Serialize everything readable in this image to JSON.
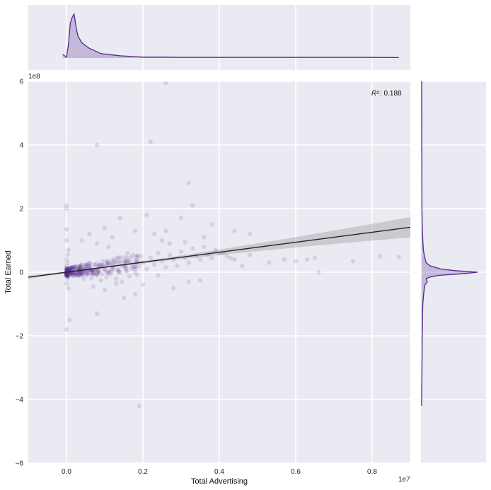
{
  "chart_data": {
    "type": "scatter",
    "subtype": "jointplot-with-regression",
    "xlabel": "Total Advertising",
    "ylabel": "Total Earned",
    "x_offset_label": "1e7",
    "y_offset_label": "1e8",
    "xlim": [
      -1000000,
      9000000
    ],
    "ylim": [
      -600000000,
      600000000
    ],
    "x_ticks": [
      0,
      2000000,
      4000000,
      6000000,
      8000000
    ],
    "x_tick_labels": [
      "0.0",
      "0.2",
      "0.4",
      "0.6",
      "0.8"
    ],
    "y_ticks": [
      -600000000,
      -400000000,
      -200000000,
      0,
      200000000,
      400000000,
      600000000
    ],
    "y_tick_labels": [
      "−6",
      "−4",
      "−2",
      "0",
      "2",
      "4",
      "6"
    ],
    "annotation": {
      "label": "R²",
      "value": ": 0.188",
      "position": "top-right"
    },
    "regression": {
      "slope": 15.7,
      "intercept": 0,
      "ci_halfwidth_at_xmax": 30000000
    },
    "grid": true,
    "background": "#eaeaf2",
    "series_color": "#54278f",
    "points": [
      [
        0,
        210000000
      ],
      [
        0,
        200000000
      ],
      [
        0,
        135000000
      ],
      [
        0,
        100000000
      ],
      [
        50000,
        70000000
      ],
      [
        30000,
        55000000
      ],
      [
        0,
        40000000
      ],
      [
        20000,
        30000000
      ],
      [
        0,
        20000000
      ],
      [
        50000,
        10000000
      ],
      [
        20000,
        0
      ],
      [
        0,
        -10000000
      ],
      [
        30000,
        -20000000
      ],
      [
        0,
        -35000000
      ],
      [
        50000,
        -50000000
      ],
      [
        0,
        -180000000
      ],
      [
        80000,
        -150000000
      ],
      [
        100000,
        -5000000
      ],
      [
        150000,
        15000000
      ],
      [
        200000,
        -8000000
      ],
      [
        250000,
        20000000
      ],
      [
        300000,
        -12000000
      ],
      [
        350000,
        8000000
      ],
      [
        400000,
        25000000
      ],
      [
        450000,
        -20000000
      ],
      [
        500000,
        12000000
      ],
      [
        550000,
        -5000000
      ],
      [
        600000,
        30000000
      ],
      [
        650000,
        -18000000
      ],
      [
        700000,
        5000000
      ],
      [
        750000,
        22000000
      ],
      [
        800000,
        -10000000
      ],
      [
        850000,
        15000000
      ],
      [
        900000,
        -25000000
      ],
      [
        950000,
        35000000
      ],
      [
        1000000,
        8000000
      ],
      [
        1050000,
        -15000000
      ],
      [
        1100000,
        28000000
      ],
      [
        1150000,
        -6000000
      ],
      [
        1200000,
        18000000
      ],
      [
        1250000,
        40000000
      ],
      [
        1300000,
        -20000000
      ],
      [
        1350000,
        10000000
      ],
      [
        1400000,
        30000000
      ],
      [
        1450000,
        -30000000
      ],
      [
        1500000,
        22000000
      ],
      [
        1550000,
        5000000
      ],
      [
        1600000,
        45000000
      ],
      [
        1650000,
        -12000000
      ],
      [
        1700000,
        25000000
      ],
      [
        1750000,
        15000000
      ],
      [
        1800000,
        38000000
      ],
      [
        1850000,
        -8000000
      ],
      [
        1900000,
        20000000
      ],
      [
        1950000,
        50000000
      ],
      [
        2000000,
        30000000
      ],
      [
        2100000,
        10000000
      ],
      [
        2200000,
        45000000
      ],
      [
        2300000,
        25000000
      ],
      [
        2400000,
        60000000
      ],
      [
        2500000,
        35000000
      ],
      [
        2600000,
        15000000
      ],
      [
        2700000,
        55000000
      ],
      [
        2800000,
        40000000
      ],
      [
        2900000,
        20000000
      ],
      [
        3000000,
        65000000
      ],
      [
        3100000,
        45000000
      ],
      [
        3200000,
        30000000
      ],
      [
        3300000,
        75000000
      ],
      [
        3400000,
        50000000
      ],
      [
        3500000,
        40000000
      ],
      [
        3600000,
        80000000
      ],
      [
        3700000,
        55000000
      ],
      [
        3800000,
        45000000
      ],
      [
        3900000,
        70000000
      ],
      [
        4000000,
        60000000
      ],
      [
        4200000,
        50000000
      ],
      [
        4400000,
        40000000
      ],
      [
        4600000,
        20000000
      ],
      [
        4800000,
        55000000
      ],
      [
        5300000,
        30000000
      ],
      [
        5700000,
        40000000
      ],
      [
        6000000,
        35000000
      ],
      [
        6300000,
        40000000
      ],
      [
        6500000,
        45000000
      ],
      [
        6600000,
        0
      ],
      [
        7500000,
        35000000
      ],
      [
        8200000,
        50000000
      ],
      [
        8700000,
        48000000
      ],
      [
        800000,
        400000000
      ],
      [
        2200000,
        410000000
      ],
      [
        2600000,
        595000000
      ],
      [
        3200000,
        280000000
      ],
      [
        1900000,
        -420000000
      ],
      [
        3500000,
        -25000000
      ],
      [
        2800000,
        -50000000
      ],
      [
        3200000,
        -30000000
      ],
      [
        2500000,
        100000000
      ],
      [
        1800000,
        130000000
      ],
      [
        2100000,
        180000000
      ],
      [
        1400000,
        170000000
      ],
      [
        1000000,
        140000000
      ],
      [
        600000,
        120000000
      ],
      [
        400000,
        100000000
      ],
      [
        2600000,
        130000000
      ],
      [
        3000000,
        170000000
      ],
      [
        3300000,
        210000000
      ],
      [
        3800000,
        150000000
      ],
      [
        4400000,
        130000000
      ],
      [
        4800000,
        120000000
      ],
      [
        3600000,
        110000000
      ],
      [
        2300000,
        120000000
      ],
      [
        1200000,
        110000000
      ],
      [
        800000,
        90000000
      ],
      [
        1500000,
        -80000000
      ],
      [
        1800000,
        -70000000
      ],
      [
        1000000,
        -55000000
      ],
      [
        700000,
        -45000000
      ],
      [
        1300000,
        -35000000
      ],
      [
        800000,
        -130000000
      ],
      [
        2000000,
        -40000000
      ],
      [
        2400000,
        -10000000
      ],
      [
        1600000,
        60000000
      ],
      [
        1100000,
        80000000
      ],
      [
        2700000,
        90000000
      ],
      [
        3100000,
        95000000
      ],
      [
        4100000,
        60000000
      ],
      [
        4300000,
        45000000
      ]
    ],
    "marginal_x_density": [
      [
        -100000,
        0.08
      ],
      [
        0,
        0.02
      ],
      [
        50000,
        0.3
      ],
      [
        100000,
        0.8
      ],
      [
        150000,
        0.93
      ],
      [
        200000,
        1.0
      ],
      [
        250000,
        0.7
      ],
      [
        300000,
        0.5
      ],
      [
        400000,
        0.35
      ],
      [
        500000,
        0.28
      ],
      [
        600000,
        0.22
      ],
      [
        700000,
        0.18
      ],
      [
        800000,
        0.14
      ],
      [
        900000,
        0.1
      ],
      [
        1000000,
        0.09
      ],
      [
        1200000,
        0.07
      ],
      [
        1400000,
        0.05
      ],
      [
        1600000,
        0.04
      ],
      [
        1800000,
        0.03
      ],
      [
        2000000,
        0.02
      ],
      [
        2500000,
        0.02
      ],
      [
        3000000,
        0.015
      ],
      [
        4000000,
        0.015
      ],
      [
        5000000,
        0.015
      ],
      [
        6000000,
        0.015
      ],
      [
        7000000,
        0.015
      ],
      [
        8000000,
        0.015
      ],
      [
        8700000,
        0.01
      ]
    ],
    "marginal_y_density": [
      [
        -420000000,
        0
      ],
      [
        -200000000,
        0.01
      ],
      [
        -100000000,
        0.02
      ],
      [
        -60000000,
        0.04
      ],
      [
        -40000000,
        0.06
      ],
      [
        -30000000,
        0.1
      ],
      [
        -20000000,
        0.08
      ],
      [
        -15000000,
        0.15
      ],
      [
        -10000000,
        0.3
      ],
      [
        -5000000,
        0.7
      ],
      [
        0,
        1.0
      ],
      [
        5000000,
        0.6
      ],
      [
        10000000,
        0.35
      ],
      [
        20000000,
        0.15
      ],
      [
        30000000,
        0.08
      ],
      [
        50000000,
        0.05
      ],
      [
        70000000,
        0.03
      ],
      [
        100000000,
        0.02
      ],
      [
        150000000,
        0.01
      ],
      [
        200000000,
        0.005
      ],
      [
        600000000,
        0
      ]
    ]
  }
}
